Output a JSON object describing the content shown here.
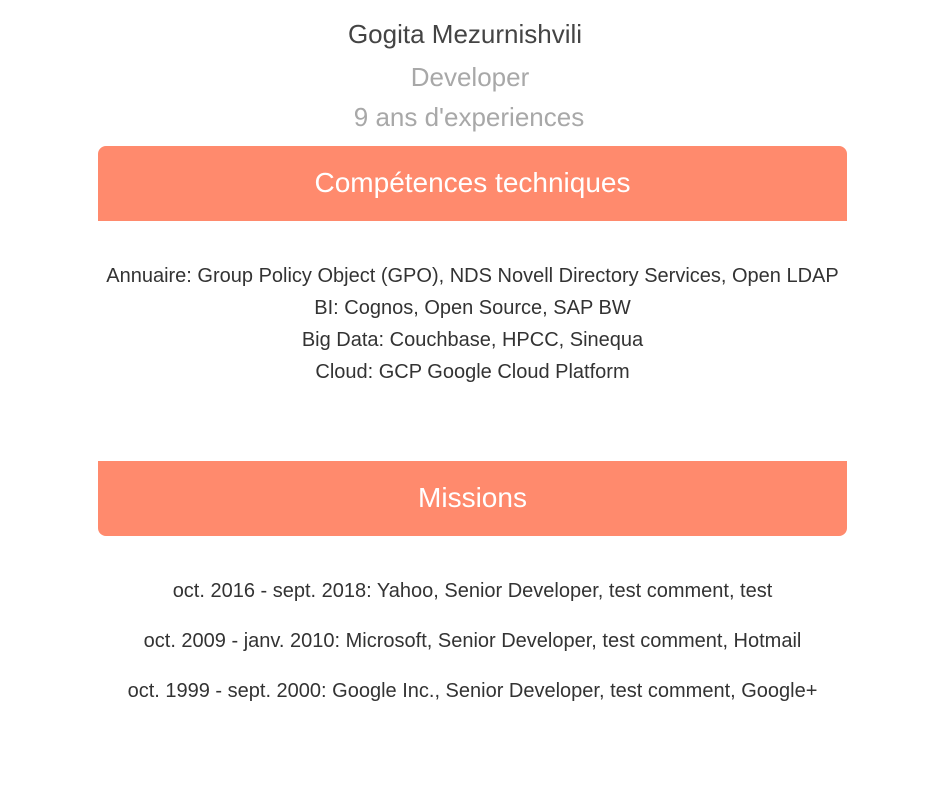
{
  "profile": {
    "name": "Gogita Mezurnishvili",
    "role": "Developer",
    "experience": "9 ans d'experiences"
  },
  "sections": {
    "skills_title": "Compétences techniques",
    "missions_title": "Missions"
  },
  "skills": [
    "Annuaire: Group Policy Object (GPO), NDS Novell Directory Services, Open LDAP",
    "BI: Cognos, Open Source, SAP BW",
    "Big Data: Couchbase, HPCC, Sinequa",
    "Cloud: GCP Google Cloud Platform"
  ],
  "missions": [
    "oct. 2016 - sept. 2018: Yahoo, Senior Developer, test comment, test",
    "oct. 2009 - janv. 2010: Microsoft, Senior Developer, test comment, Hotmail",
    "oct. 1999 - sept. 2000: Google Inc., Senior Developer, test comment, Google+"
  ],
  "colors": {
    "accent": "#ff8a6d",
    "muted_text": "#a8a8a8",
    "body_text": "#333333"
  }
}
